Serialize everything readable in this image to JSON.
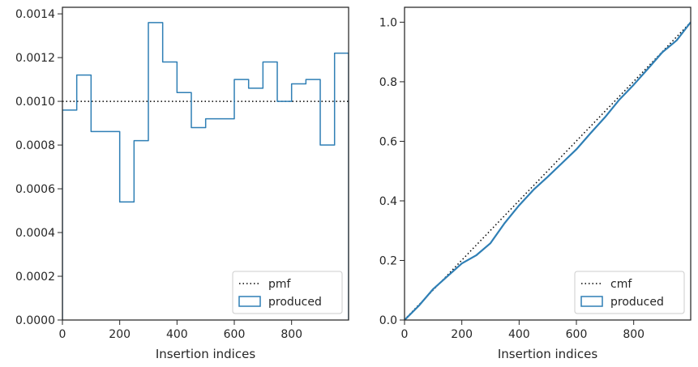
{
  "chart_data": [
    {
      "type": "histogram",
      "xlabel": "Insertion indices",
      "ylabel": "",
      "xlim": [
        0,
        999
      ],
      "ylim": [
        0,
        0.00143
      ],
      "xticks": [
        "0",
        "200",
        "400",
        "600",
        "800"
      ],
      "yticks": [
        "0.0000",
        "0.0002",
        "0.0004",
        "0.0006",
        "0.0008",
        "0.0010",
        "0.0012",
        "0.0014"
      ],
      "grid": false,
      "legend_position": "lower-right",
      "bin_edges": [
        0,
        50,
        100,
        150,
        200,
        250,
        300,
        350,
        400,
        450,
        500,
        550,
        600,
        650,
        700,
        750,
        800,
        850,
        900,
        950,
        999
      ],
      "series": [
        {
          "name": "pmf",
          "style": "dotted",
          "color": "#000000",
          "x": [
            0,
            999
          ],
          "values": [
            0.001,
            0.001
          ]
        },
        {
          "name": "produced",
          "style": "step",
          "color": "#2f7fb5",
          "values": [
            0.00096,
            0.00112,
            0.000862,
            0.000862,
            0.00054,
            0.00082,
            0.00136,
            0.00118,
            0.00104,
            0.00088,
            0.00092,
            0.00092,
            0.0011,
            0.00106,
            0.00118,
            0.001,
            0.00108,
            0.0011,
            0.0008,
            0.00122
          ]
        }
      ]
    },
    {
      "type": "line",
      "xlabel": "Insertion indices",
      "ylabel": "",
      "xlim": [
        0,
        999
      ],
      "ylim": [
        0,
        1.05
      ],
      "xticks": [
        "0",
        "200",
        "400",
        "600",
        "800"
      ],
      "yticks": [
        "0.0",
        "0.2",
        "0.4",
        "0.6",
        "0.8",
        "1.0"
      ],
      "grid": false,
      "legend_position": "lower-right",
      "series": [
        {
          "name": "cmf",
          "style": "dotted",
          "color": "#000000",
          "x": [
            0,
            999
          ],
          "values": [
            0.001,
            1.0
          ]
        },
        {
          "name": "produced",
          "style": "solid",
          "color": "#2f7fb5",
          "x": [
            0,
            50,
            100,
            150,
            200,
            250,
            300,
            350,
            400,
            450,
            500,
            550,
            600,
            650,
            700,
            750,
            800,
            850,
            900,
            950,
            999
          ],
          "values": [
            0.0,
            0.048,
            0.104,
            0.147,
            0.19,
            0.217,
            0.258,
            0.326,
            0.385,
            0.437,
            0.481,
            0.527,
            0.573,
            0.628,
            0.681,
            0.74,
            0.79,
            0.844,
            0.899,
            0.939,
            1.0
          ]
        }
      ]
    }
  ]
}
